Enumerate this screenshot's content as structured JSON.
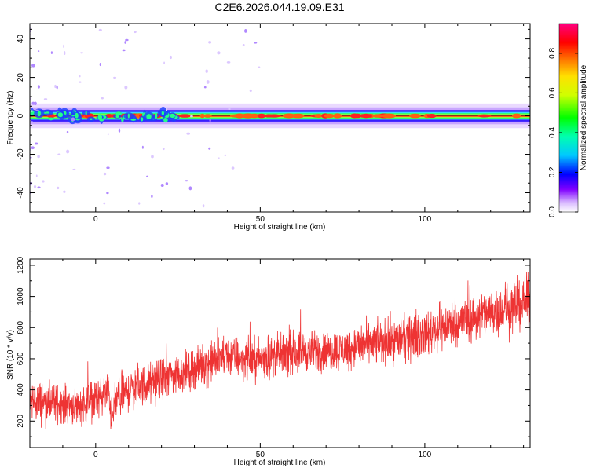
{
  "title": "C2E6.2026.044.19.09.E31",
  "chart_data": [
    {
      "type": "heatmap",
      "xlabel": "Height of straight line (km)",
      "ylabel": "Frequency (Hz)",
      "xlim": [
        -20,
        132
      ],
      "ylim": [
        -50,
        48
      ],
      "xticks": [
        0,
        50,
        100
      ],
      "yticks": [
        -40,
        -20,
        0,
        20,
        40
      ],
      "x_tick_labels": [
        "0",
        "50",
        "100"
      ],
      "y_tick_labels": [
        "-40",
        "-20",
        "0",
        "20",
        "40"
      ],
      "colorbar": {
        "label": "Normalized spectral amplitude",
        "range": [
          0,
          0.95
        ],
        "ticks": [
          0.0,
          0.2,
          0.4,
          0.6,
          0.8
        ],
        "tick_labels": [
          "0.0",
          "0.2",
          "0.4",
          "0.6",
          "0.8"
        ],
        "colormap": "rainbow (white, violet, blue, cyan, green, yellow, orange, red, magenta)"
      },
      "ridge": {
        "center_frequency_hz": 0,
        "peak_amplitude_min": 0.8,
        "peak_amplitude_max": 0.95,
        "half_width_hz": 4
      },
      "legend": "none",
      "grid": false
    },
    {
      "type": "line",
      "xlabel": "Height of straight line (km)",
      "ylabel": "SNR (10 * v/v)",
      "xlim": [
        -20,
        132
      ],
      "ylim": [
        30,
        1240
      ],
      "xticks": [
        0,
        50,
        100
      ],
      "yticks": [
        200,
        400,
        600,
        800,
        1000,
        1200
      ],
      "x_tick_labels": [
        "0",
        "50",
        "100"
      ],
      "y_tick_labels": [
        "200",
        "400",
        "600",
        "800",
        "1000",
        "1200"
      ],
      "color": "#ee3333",
      "series": [
        {
          "x": [
            -20,
            -15,
            -10,
            -5,
            0,
            4,
            5,
            6,
            10,
            15,
            20,
            25,
            30,
            35,
            40,
            45,
            50,
            55,
            60,
            65,
            70,
            75,
            80,
            85,
            90,
            95,
            100,
            105,
            110,
            115,
            120,
            125,
            130,
            132
          ],
          "y": [
            330,
            320,
            310,
            300,
            340,
            380,
            200,
            330,
            400,
            430,
            470,
            500,
            540,
            580,
            620,
            600,
            600,
            620,
            640,
            650,
            640,
            660,
            680,
            700,
            720,
            730,
            760,
            800,
            830,
            860,
            900,
            930,
            960,
            970
          ],
          "spread": [
            120,
            120,
            110,
            110,
            120,
            130,
            120,
            120,
            120,
            120,
            120,
            120,
            120,
            120,
            125,
            120,
            120,
            120,
            120,
            120,
            120,
            120,
            125,
            125,
            130,
            130,
            130,
            135,
            135,
            140,
            145,
            150,
            150,
            150
          ]
        }
      ],
      "legend": "none",
      "grid": false
    }
  ]
}
